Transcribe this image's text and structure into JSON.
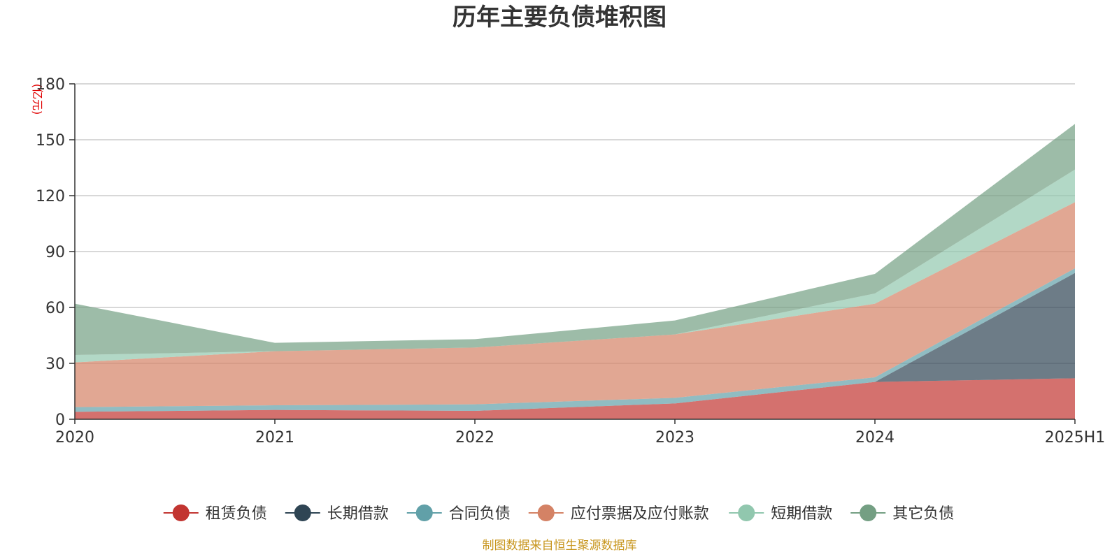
{
  "chart_data": {
    "type": "area",
    "stacked": true,
    "title": "历年主要负债堆积图",
    "yunit": "(亿元)",
    "categories": [
      "2020",
      "2021",
      "2022",
      "2023",
      "2024",
      "2025H1"
    ],
    "ylim": [
      0,
      180
    ],
    "yticks": [
      0,
      30,
      60,
      90,
      120,
      150,
      180
    ],
    "grid": true,
    "legend_position": "bottom",
    "series": [
      {
        "name": "租赁负债",
        "values": [
          4.0,
          5.0,
          4.5,
          8.5,
          20.0,
          22.0
        ],
        "color": "#c23531"
      },
      {
        "name": "长期借款",
        "values": [
          0,
          0,
          0,
          0,
          0,
          56.5
        ],
        "color": "#2f4554"
      },
      {
        "name": "合同负债",
        "values": [
          2.5,
          2.5,
          3.5,
          3.0,
          2.5,
          2.5
        ],
        "color": "#61a0a8"
      },
      {
        "name": "应付票据及应付账款",
        "values": [
          24.0,
          29.0,
          30.5,
          34.0,
          39.5,
          35.5
        ],
        "color": "#d48265"
      },
      {
        "name": "短期借款",
        "values": [
          4.0,
          0,
          0,
          0,
          5.5,
          17.5
        ],
        "color": "#91c7ae"
      },
      {
        "name": "其它负债",
        "values": [
          27.5,
          4.5,
          4.5,
          7.5,
          10.5,
          24.5
        ],
        "color": "#749f83"
      }
    ]
  },
  "source": "制图数据来自恒生聚源数据库"
}
